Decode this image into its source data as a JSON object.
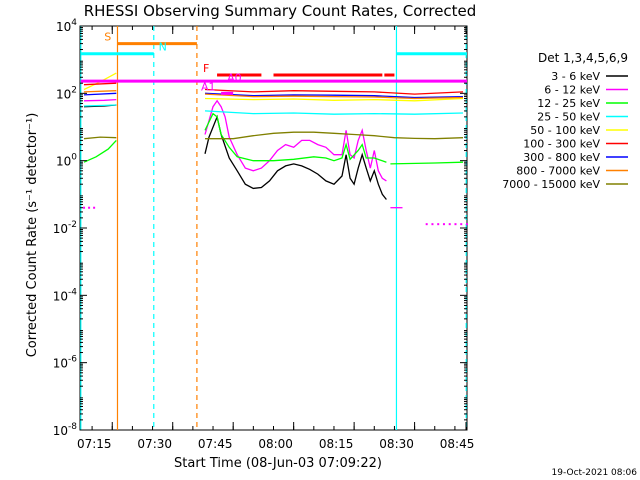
{
  "chart_data": {
    "type": "line",
    "title": "RHESSI Observing Summary Count Rates, Corrected",
    "xlabel": "Start Time (08-Jun-03 07:09:22)",
    "ylabel": "Corrected Count Rate (s⁻¹ detector⁻¹)",
    "y_scale": "log",
    "ylim": [
      1e-08,
      10000
    ],
    "xlim_minutes": [
      7.0,
      103.0
    ],
    "x_tick_labels": [
      "07:15",
      "07:30",
      "07:45",
      "08:00",
      "08:15",
      "08:30",
      "08:45"
    ],
    "x_ticks_minutes": [
      15,
      30,
      45,
      60,
      75,
      90,
      105
    ],
    "y_ticks": [
      {
        "value": 1e-08,
        "mant": "10",
        "exp": "-8"
      },
      {
        "value": 1e-06,
        "mant": "10",
        "exp": "-6"
      },
      {
        "value": 0.0001,
        "mant": "10",
        "exp": "-4"
      },
      {
        "value": 0.01,
        "mant": "10",
        "exp": "-2"
      },
      {
        "value": 1,
        "mant": "10",
        "exp": "0"
      },
      {
        "value": 100,
        "mant": "10",
        "exp": "2"
      },
      {
        "value": 10000,
        "mant": "10",
        "exp": "4"
      }
    ],
    "legend_title": "Det 1,3,4,5,6,9",
    "legend_placement": "right",
    "timestamp": "19-Oct-2021 08:06",
    "series": [
      {
        "name": "3 - 6 keV",
        "color": "#000000",
        "segments": [
          [
            [
              8,
              40
            ],
            [
              13,
              42
            ],
            [
              16,
              45
            ]
          ],
          [
            [
              38,
              1.6
            ],
            [
              39,
              5
            ],
            [
              41,
              20
            ],
            [
              42,
              6
            ],
            [
              44,
              1.2
            ],
            [
              46,
              0.5
            ],
            [
              48,
              0.2
            ],
            [
              50,
              0.15
            ],
            [
              52,
              0.16
            ],
            [
              54,
              0.25
            ],
            [
              56,
              0.5
            ],
            [
              58,
              0.7
            ],
            [
              60,
              0.8
            ],
            [
              62,
              0.7
            ],
            [
              64,
              0.55
            ],
            [
              66,
              0.4
            ],
            [
              68,
              0.25
            ],
            [
              70,
              0.2
            ],
            [
              72,
              0.35
            ],
            [
              73,
              1.5
            ],
            [
              74,
              0.3
            ],
            [
              75,
              0.2
            ],
            [
              76,
              0.6
            ],
            [
              77,
              1.5
            ],
            [
              78,
              0.6
            ],
            [
              79,
              0.25
            ],
            [
              80,
              0.5
            ],
            [
              81,
              0.2
            ],
            [
              82,
              0.1
            ],
            [
              83,
              0.07
            ]
          ]
        ]
      },
      {
        "name": "6 - 12 keV",
        "color": "#ff00ff",
        "segments": [
          [
            [
              8,
              60
            ],
            [
              13,
              62
            ],
            [
              16,
              65
            ]
          ],
          [
            [
              38,
              6
            ],
            [
              40,
              40
            ],
            [
              41,
              60
            ],
            [
              42,
              40
            ],
            [
              43,
              20
            ],
            [
              44,
              5
            ],
            [
              46,
              1.5
            ],
            [
              48,
              0.6
            ],
            [
              50,
              0.5
            ],
            [
              52,
              0.6
            ],
            [
              54,
              1.0
            ],
            [
              56,
              2.0
            ],
            [
              58,
              3.0
            ],
            [
              60,
              2.5
            ],
            [
              62,
              4.0
            ],
            [
              64,
              4.0
            ],
            [
              66,
              3.0
            ],
            [
              68,
              2.5
            ],
            [
              70,
              1.5
            ],
            [
              72,
              1.5
            ],
            [
              73,
              8
            ],
            [
              74,
              1.5
            ],
            [
              75,
              1.2
            ],
            [
              76,
              4
            ],
            [
              77,
              8
            ],
            [
              78,
              2
            ],
            [
              79,
              0.6
            ],
            [
              80,
              2
            ],
            [
              81,
              0.5
            ],
            [
              82,
              0.3
            ],
            [
              83,
              0.25
            ]
          ],
          [
            [
              84,
              0.04
            ],
            [
              87,
              0.04
            ]
          ]
        ]
      },
      {
        "name": "12 - 25 keV",
        "color": "#00ff00",
        "segments": [
          [
            [
              8,
              0.9
            ],
            [
              11,
              1.3
            ],
            [
              14,
              2.2
            ],
            [
              16,
              4
            ]
          ],
          [
            [
              38,
              8
            ],
            [
              40,
              25
            ],
            [
              41,
              20
            ],
            [
              42,
              6
            ],
            [
              44,
              2.5
            ],
            [
              46,
              1.3
            ],
            [
              50,
              1.0
            ],
            [
              55,
              1.0
            ],
            [
              60,
              1.1
            ],
            [
              65,
              1.3
            ],
            [
              68,
              1.2
            ],
            [
              70,
              1.0
            ],
            [
              72,
              1.2
            ],
            [
              73,
              3
            ],
            [
              74,
              1.1
            ],
            [
              76,
              2
            ],
            [
              77,
              3
            ],
            [
              78,
              1.2
            ],
            [
              80,
              1.2
            ],
            [
              83,
              0.9
            ]
          ],
          [
            [
              84,
              0.8
            ],
            [
              95,
              0.85
            ],
            [
              102,
              0.9
            ]
          ]
        ]
      },
      {
        "name": "25 - 50 keV",
        "color": "#00ffff",
        "segments": [
          [
            [
              8,
              42
            ],
            [
              16,
              45
            ]
          ],
          [
            [
              38,
              30
            ],
            [
              50,
              25
            ],
            [
              60,
              26
            ],
            [
              70,
              24
            ],
            [
              80,
              25
            ],
            [
              90,
              24
            ],
            [
              102,
              26
            ]
          ]
        ]
      },
      {
        "name": "50 - 100 keV",
        "color": "#ffff00",
        "segments": [
          [
            [
              8,
              130
            ],
            [
              12,
              220
            ],
            [
              16,
              400
            ]
          ],
          [
            [
              38,
              70
            ],
            [
              50,
              65
            ],
            [
              60,
              68
            ],
            [
              70,
              62
            ],
            [
              80,
              65
            ],
            [
              90,
              60
            ],
            [
              102,
              70
            ]
          ]
        ]
      },
      {
        "name": "100 - 300 keV",
        "color": "#ff0000",
        "segments": [
          [
            [
              8,
              180
            ],
            [
              16,
              200
            ]
          ],
          [
            [
              38,
              130
            ],
            [
              50,
              110
            ],
            [
              60,
              120
            ],
            [
              70,
              115
            ],
            [
              80,
              110
            ],
            [
              90,
              95
            ],
            [
              102,
              110
            ]
          ]
        ]
      },
      {
        "name": "300 - 800 keV",
        "color": "#0000ff",
        "segments": [
          [
            [
              8,
              90
            ],
            [
              16,
              100
            ]
          ],
          [
            [
              38,
              100
            ],
            [
              50,
              85
            ],
            [
              60,
              90
            ],
            [
              70,
              88
            ],
            [
              80,
              85
            ],
            [
              90,
              75
            ],
            [
              102,
              80
            ]
          ]
        ]
      },
      {
        "name": "800 - 7000 keV",
        "color": "#ff8000",
        "segments": [
          [
            [
              8,
              110
            ],
            [
              16,
              120
            ]
          ],
          [
            [
              38,
              95
            ],
            [
              50,
              80
            ],
            [
              60,
              82
            ],
            [
              70,
              80
            ],
            [
              80,
              78
            ],
            [
              90,
              70
            ],
            [
              102,
              75
            ]
          ]
        ]
      },
      {
        "name": "7000 - 15000 keV",
        "color": "#808000",
        "segments": [
          [
            [
              8,
              4.5
            ],
            [
              12,
              5.0
            ],
            [
              16,
              4.8
            ]
          ],
          [
            [
              38,
              4.5
            ],
            [
              45,
              4.5
            ],
            [
              50,
              5.5
            ],
            [
              55,
              6.5
            ],
            [
              60,
              7.0
            ],
            [
              65,
              7.0
            ],
            [
              70,
              6.5
            ],
            [
              75,
              6.0
            ],
            [
              80,
              5.5
            ],
            [
              85,
              4.8
            ],
            [
              90,
              4.6
            ],
            [
              95,
              4.5
            ],
            [
              102,
              4.8
            ]
          ]
        ]
      }
    ],
    "vertical_lines": [
      {
        "x": 7.2,
        "color": "#00ffff",
        "style": "solid"
      },
      {
        "x": 16.3,
        "color": "#ff8000",
        "style": "solid"
      },
      {
        "x": 25.3,
        "color": "#00ffff",
        "style": "dashed"
      },
      {
        "x": 36.0,
        "color": "#ff8000",
        "style": "dashed"
      },
      {
        "x": 85.5,
        "color": "#00ffff",
        "style": "solid"
      },
      {
        "x": 102.8,
        "color": "#00ffff",
        "style": "dashed"
      }
    ],
    "flag_bars": [
      {
        "label": "S",
        "color": "#ff8000",
        "y": 3000,
        "label_x": 13.0,
        "segments": [
          [
            16.3,
            36.0
          ]
        ]
      },
      {
        "label": "N",
        "color": "#00ffff",
        "y": 1500,
        "label_x": 26.5,
        "segments": [
          [
            7.2,
            25.3
          ],
          [
            85.5,
            103
          ]
        ]
      },
      {
        "label": "F",
        "color": "#ff0000",
        "y": 350,
        "label_x": 37.5,
        "segments": [
          [
            41,
            52
          ],
          [
            55,
            82
          ],
          [
            82.5,
            85
          ]
        ]
      },
      {
        "label": "",
        "color": "#ff00ff",
        "y": 230,
        "label_x": null,
        "segments": [
          [
            7.2,
            103
          ]
        ]
      },
      {
        "label": "A0",
        "color": "#ff00ff",
        "y": 180,
        "label_x": 43.5,
        "segments": []
      },
      {
        "label": "A1",
        "color": "#ff00ff",
        "y": 100,
        "label_x": 37.0,
        "segments": [
          [
            42,
            45
          ]
        ]
      }
    ],
    "dotted_series": [
      {
        "color": "#ff00ff",
        "y": 0.04,
        "x_range": [
          8.0,
          10.5
        ],
        "count": 3
      },
      {
        "color": "#ff00ff",
        "y": 0.013,
        "x_range": [
          93,
          103
        ],
        "count": 8
      }
    ]
  }
}
